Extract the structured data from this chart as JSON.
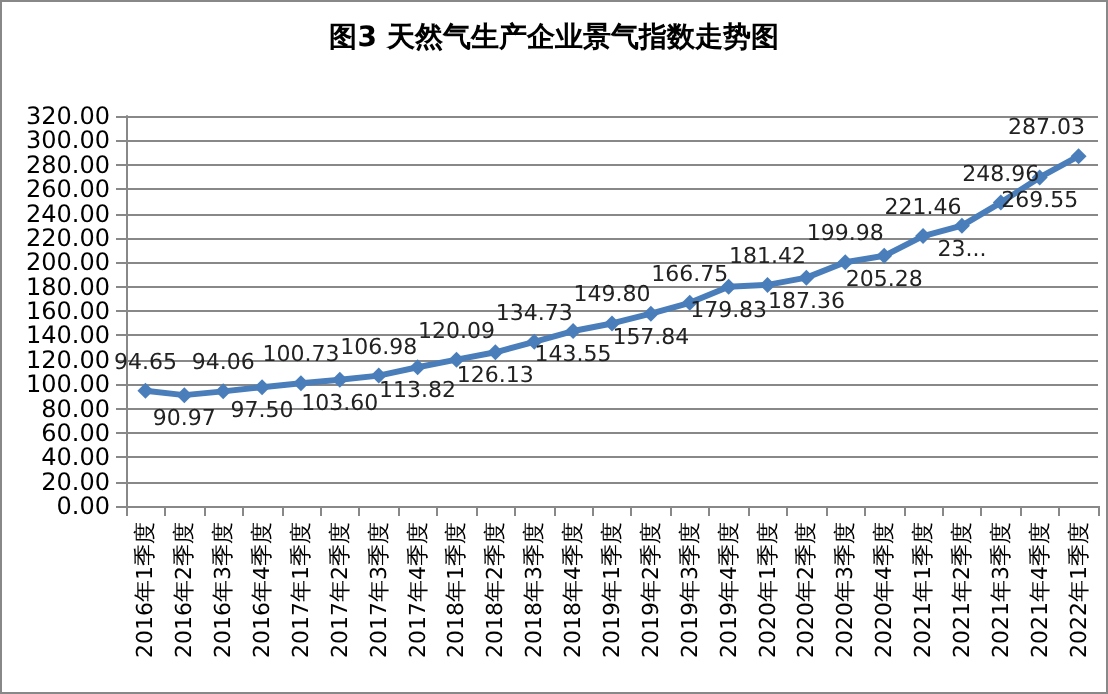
{
  "chart_data": {
    "type": "line",
    "title": "图3 天然气生产企业景气指数走势图",
    "categories": [
      "2016年1季度",
      "2016年2季度",
      "2016年3季度",
      "2016年4季度",
      "2017年1季度",
      "2017年2季度",
      "2017年3季度",
      "2017年4季度",
      "2018年1季度",
      "2018年2季度",
      "2018年3季度",
      "2018年4季度",
      "2019年1季度",
      "2019年2季度",
      "2019年3季度",
      "2019年4季度",
      "2020年1季度",
      "2020年2季度",
      "2020年3季度",
      "2020年4季度",
      "2021年1季度",
      "2021年2季度",
      "2021年3季度",
      "2021年4季度",
      "2022年1季度"
    ],
    "series": [
      {
        "color": "#4a7ebb",
        "values": [
          94.65,
          90.97,
          94.06,
          97.5,
          100.73,
          103.6,
          106.98,
          113.82,
          120.09,
          126.13,
          134.73,
          143.55,
          149.8,
          157.84,
          166.75,
          179.83,
          181.42,
          187.36,
          199.98,
          205.28,
          221.46,
          230,
          248.96,
          269.55,
          287.03
        ],
        "value_labels": [
          "94.65",
          "90.97",
          "94.06",
          "97.50",
          "100.73",
          "103.60",
          "106.98",
          "113.82",
          "120.09",
          "126.13",
          "134.73",
          "143.55",
          "149.80",
          "157.84",
          "166.75",
          "179.83",
          "181.42",
          "187.36",
          "199.98",
          "205.28",
          "221.46",
          "23...",
          "248.96",
          "269.55",
          "287.03"
        ]
      }
    ],
    "ylim": [
      0,
      320
    ],
    "yticks": [
      {
        "value": 0,
        "label": "0.00"
      },
      {
        "value": 20,
        "label": "20.00"
      },
      {
        "value": 40,
        "label": "40.00"
      },
      {
        "value": 60,
        "label": "60.00"
      },
      {
        "value": 80,
        "label": "80.00"
      },
      {
        "value": 100,
        "label": "100.00"
      },
      {
        "value": 120,
        "label": "120.00"
      },
      {
        "value": 140,
        "label": "140.00"
      },
      {
        "value": 160,
        "label": "160.00"
      },
      {
        "value": 180,
        "label": "180.00"
      },
      {
        "value": 200,
        "label": "200.00"
      },
      {
        "value": 220,
        "label": "220.00"
      },
      {
        "value": 240,
        "label": "240.00"
      },
      {
        "value": 260,
        "label": "260.00"
      },
      {
        "value": 280,
        "label": "280.00"
      },
      {
        "value": 300,
        "label": "300.00"
      },
      {
        "value": 320,
        "label": "320.00"
      }
    ],
    "grid": "y",
    "marker": "diamond",
    "line_style": "solid"
  }
}
